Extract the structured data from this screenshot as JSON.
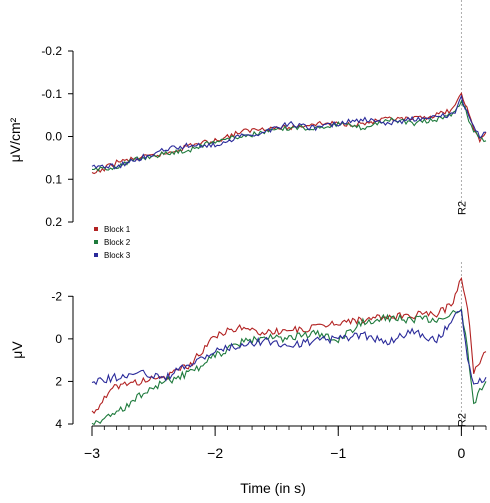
{
  "chart_data": [
    {
      "type": "line",
      "ylabel": "μV/cm²",
      "xlim": [
        -3,
        0.2
      ],
      "ylim": [
        0.2,
        -0.2
      ],
      "y_inverted": true,
      "yticks": [
        "-0.2",
        "-0.1",
        "0.0",
        "0.1",
        "0.2"
      ],
      "ytick_values": [
        -0.2,
        -0.1,
        0.0,
        0.1,
        0.2
      ],
      "annotation": "R2",
      "marker_x": 0,
      "series": [
        {
          "name": "Block 1",
          "color": "#b22222",
          "x": [
            -3.0,
            -2.8,
            -2.6,
            -2.4,
            -2.2,
            -2.0,
            -1.8,
            -1.6,
            -1.4,
            -1.2,
            -1.0,
            -0.8,
            -0.6,
            -0.4,
            -0.2,
            -0.1,
            -0.05,
            0.0,
            0.03,
            0.06,
            0.1,
            0.15,
            0.2
          ],
          "values": [
            0.09,
            0.06,
            0.05,
            0.04,
            0.02,
            0.01,
            -0.01,
            -0.02,
            -0.02,
            -0.03,
            -0.03,
            -0.03,
            -0.04,
            -0.04,
            -0.05,
            -0.06,
            -0.07,
            -0.1,
            -0.08,
            -0.05,
            -0.02,
            0.01,
            -0.01
          ]
        },
        {
          "name": "Block 2",
          "color": "#1e7a3c",
          "x": [
            -3.0,
            -2.8,
            -2.6,
            -2.4,
            -2.2,
            -2.0,
            -1.8,
            -1.6,
            -1.4,
            -1.2,
            -1.0,
            -0.8,
            -0.6,
            -0.4,
            -0.2,
            -0.1,
            -0.05,
            0.0,
            0.03,
            0.06,
            0.1,
            0.15,
            0.2
          ],
          "values": [
            0.08,
            0.07,
            0.05,
            0.04,
            0.03,
            0.01,
            0.0,
            -0.01,
            -0.02,
            -0.02,
            -0.03,
            -0.02,
            -0.04,
            -0.03,
            -0.04,
            -0.05,
            -0.06,
            -0.08,
            -0.07,
            -0.04,
            -0.01,
            0.0,
            0.01
          ]
        },
        {
          "name": "Block 3",
          "color": "#2a2a9a",
          "x": [
            -3.0,
            -2.8,
            -2.6,
            -2.4,
            -2.2,
            -2.0,
            -1.8,
            -1.6,
            -1.4,
            -1.2,
            -1.0,
            -0.8,
            -0.6,
            -0.4,
            -0.2,
            -0.1,
            -0.05,
            0.0,
            0.03,
            0.06,
            0.1,
            0.15,
            0.2
          ],
          "values": [
            0.07,
            0.07,
            0.05,
            0.03,
            0.02,
            0.02,
            0.0,
            -0.01,
            -0.03,
            -0.02,
            -0.03,
            -0.04,
            -0.03,
            -0.04,
            -0.05,
            -0.05,
            -0.06,
            -0.09,
            -0.07,
            -0.05,
            -0.02,
            0.0,
            -0.01
          ]
        }
      ]
    },
    {
      "type": "line",
      "ylabel": "μV",
      "xlabel": "Time (in s)",
      "xlim": [
        -3,
        0.2
      ],
      "ylim": [
        4,
        -3
      ],
      "y_inverted": true,
      "yticks": [
        "-2",
        "0",
        "2",
        "4"
      ],
      "ytick_values": [
        -2,
        0,
        2,
        4
      ],
      "xticks": [
        "−3",
        "−2",
        "−1",
        "0"
      ],
      "xtick_values": [
        -3,
        -2,
        -1,
        0
      ],
      "annotation": "R2",
      "marker_x": 0,
      "series": [
        {
          "name": "Block 1",
          "color": "#b22222",
          "x": [
            -3.0,
            -2.8,
            -2.6,
            -2.4,
            -2.2,
            -2.0,
            -1.8,
            -1.6,
            -1.4,
            -1.2,
            -1.0,
            -0.8,
            -0.6,
            -0.4,
            -0.2,
            -0.1,
            -0.05,
            0.0,
            0.05,
            0.1,
            0.15,
            0.2
          ],
          "values": [
            3.5,
            2.2,
            2.0,
            1.8,
            1.2,
            -0.2,
            -0.5,
            -0.3,
            -0.4,
            -0.5,
            -0.8,
            -0.9,
            -1.0,
            -1.1,
            -1.2,
            -1.5,
            -2.0,
            -3.0,
            -1.5,
            1.5,
            1.0,
            0.6
          ]
        },
        {
          "name": "Block 2",
          "color": "#1e7a3c",
          "x": [
            -3.0,
            -2.8,
            -2.6,
            -2.4,
            -2.2,
            -2.0,
            -1.8,
            -1.6,
            -1.4,
            -1.2,
            -1.0,
            -0.8,
            -0.6,
            -0.4,
            -0.2,
            -0.1,
            -0.05,
            0.0,
            0.05,
            0.1,
            0.15,
            0.2
          ],
          "values": [
            4.0,
            3.5,
            2.6,
            2.0,
            1.6,
            0.8,
            0.2,
            -0.1,
            0.0,
            -0.3,
            0.1,
            -0.8,
            -1.0,
            -0.9,
            -0.9,
            -1.0,
            -1.3,
            -1.5,
            0.5,
            3.0,
            2.5,
            2.0
          ]
        },
        {
          "name": "Block 3",
          "color": "#2a2a9a",
          "x": [
            -3.0,
            -2.8,
            -2.6,
            -2.4,
            -2.2,
            -2.0,
            -1.8,
            -1.6,
            -1.4,
            -1.2,
            -1.0,
            -0.8,
            -0.6,
            -0.4,
            -0.2,
            -0.1,
            -0.05,
            0.0,
            0.05,
            0.1,
            0.15,
            0.2
          ],
          "values": [
            2.0,
            1.8,
            1.6,
            1.8,
            1.2,
            0.6,
            0.3,
            0.1,
            0.3,
            0.1,
            0.0,
            -0.2,
            0.2,
            -0.4,
            0.1,
            -0.7,
            -1.0,
            -1.4,
            0.8,
            2.2,
            2.0,
            1.8
          ]
        }
      ]
    }
  ],
  "legend": [
    "Block 1",
    "Block 2",
    "Block 3"
  ]
}
